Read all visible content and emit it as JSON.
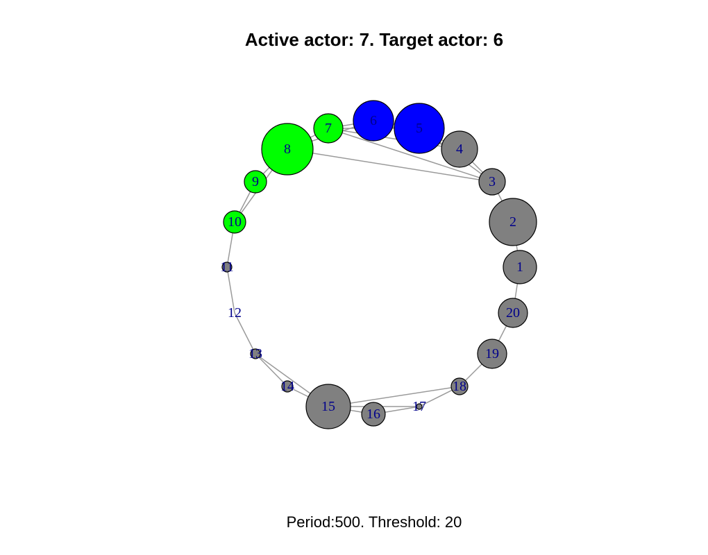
{
  "title": "Active actor: 7. Target actor: 6",
  "subtitle": "Period:500. Threshold: 20",
  "colors": {
    "active_group": "#00ff00",
    "target_group": "#0000ff",
    "other": "#808080",
    "edge": "#9a9a9a",
    "node_border": "#000000",
    "label": "#00008b"
  },
  "nodes": [
    {
      "id": "1",
      "label": "1",
      "group": "other"
    },
    {
      "id": "2",
      "label": "2",
      "group": "other"
    },
    {
      "id": "3",
      "label": "3",
      "group": "other"
    },
    {
      "id": "4",
      "label": "4",
      "group": "other"
    },
    {
      "id": "5",
      "label": "5",
      "group": "target"
    },
    {
      "id": "6",
      "label": "6",
      "group": "target"
    },
    {
      "id": "7",
      "label": "7",
      "group": "active"
    },
    {
      "id": "8",
      "label": "8",
      "group": "active"
    },
    {
      "id": "9",
      "label": "9",
      "group": "active"
    },
    {
      "id": "10",
      "label": "10",
      "group": "active"
    },
    {
      "id": "11",
      "label": "11",
      "group": "other"
    },
    {
      "id": "12",
      "label": "12",
      "group": "other"
    },
    {
      "id": "13",
      "label": "13",
      "group": "other"
    },
    {
      "id": "14",
      "label": "14",
      "group": "other"
    },
    {
      "id": "15",
      "label": "15",
      "group": "other"
    },
    {
      "id": "16",
      "label": "16",
      "group": "other"
    },
    {
      "id": "17",
      "label": "17",
      "group": "other"
    },
    {
      "id": "18",
      "label": "18",
      "group": "other"
    },
    {
      "id": "19",
      "label": "19",
      "group": "other"
    },
    {
      "id": "20",
      "label": "20",
      "group": "other"
    }
  ],
  "edges": [
    [
      "7",
      "6"
    ],
    [
      "7",
      "5"
    ],
    [
      "7",
      "4"
    ],
    [
      "7",
      "3"
    ],
    [
      "8",
      "7"
    ],
    [
      "8",
      "6"
    ],
    [
      "8",
      "3"
    ],
    [
      "8",
      "9"
    ],
    [
      "8",
      "10"
    ],
    [
      "6",
      "5"
    ],
    [
      "6",
      "4"
    ],
    [
      "5",
      "4"
    ],
    [
      "5",
      "3"
    ],
    [
      "4",
      "3"
    ],
    [
      "3",
      "2"
    ],
    [
      "2",
      "1"
    ],
    [
      "1",
      "20"
    ],
    [
      "20",
      "19"
    ],
    [
      "19",
      "18"
    ],
    [
      "18",
      "15"
    ],
    [
      "18",
      "17"
    ],
    [
      "17",
      "16"
    ],
    [
      "17",
      "15"
    ],
    [
      "16",
      "15"
    ],
    [
      "15",
      "14"
    ],
    [
      "15",
      "13"
    ],
    [
      "14",
      "13"
    ],
    [
      "13",
      "12"
    ],
    [
      "12",
      "11"
    ],
    [
      "11",
      "10"
    ],
    [
      "10",
      "9"
    ]
  ]
}
